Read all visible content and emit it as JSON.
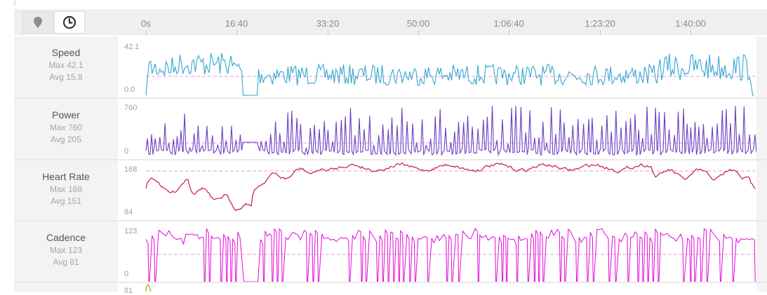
{
  "toolbar": {
    "view_buttons": [
      {
        "name": "map",
        "icon": "map-pin-icon",
        "active": false
      },
      {
        "name": "time",
        "icon": "clock-icon",
        "active": true
      }
    ]
  },
  "time_axis": {
    "ticks": [
      "0s",
      "16:40",
      "33:20",
      "50:00",
      "1:06:40",
      "1:23:20",
      "1:40:00"
    ]
  },
  "metrics": [
    {
      "key": "speed",
      "name": "Speed",
      "max_label": "Max 42.1",
      "avg_label": "Avg 15.8",
      "axis_top": "42.1",
      "axis_bottom": "0.0",
      "color": "#35a6cf",
      "avg_color": "#e79ad0"
    },
    {
      "key": "power",
      "name": "Power",
      "max_label": "Max 760",
      "avg_label": "Avg 205",
      "axis_top": "760",
      "axis_bottom": "0",
      "color": "#6a3fc4",
      "avg_color": "#e79ad0"
    },
    {
      "key": "heart_rate",
      "name": "Heart Rate",
      "max_label": "Max 168",
      "avg_label": "Avg 151",
      "axis_top": "168",
      "axis_bottom": "84",
      "color": "#c8165a",
      "avg_color": "#e79ad0"
    },
    {
      "key": "cadence",
      "name": "Cadence",
      "max_label": "Max 123",
      "avg_label": "Avg 81",
      "axis_top": "123",
      "axis_bottom": "0",
      "color": "#e40ad8",
      "avg_color": "#e79ad0"
    }
  ],
  "partial_next_row": {
    "axis_top": "81",
    "color": "#a8a21e"
  }
}
